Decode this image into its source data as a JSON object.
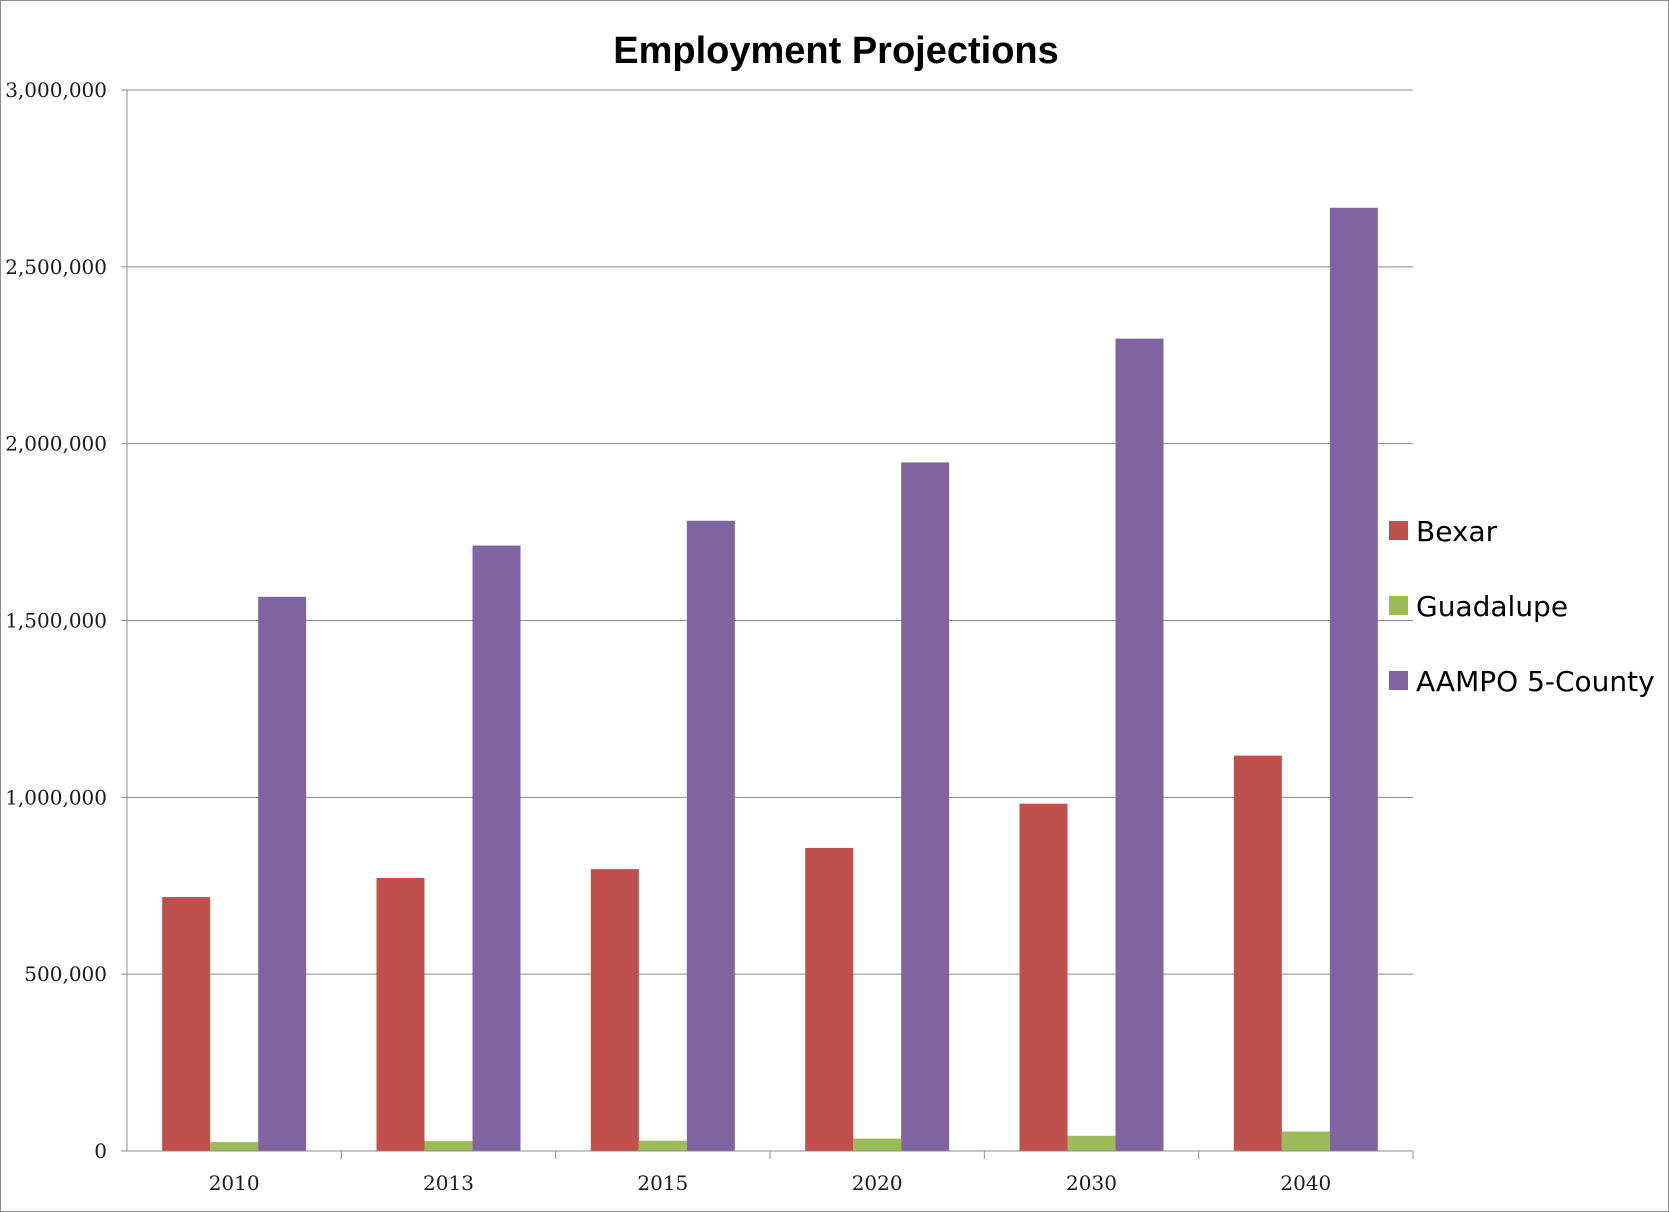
{
  "chart_data": {
    "type": "bar",
    "title": "Employment Projections",
    "xlabel": "",
    "ylabel": "",
    "categories": [
      "2010",
      "2013",
      "2015",
      "2020",
      "2030",
      "2040"
    ],
    "series": [
      {
        "name": "Bexar",
        "color": "#c0504d",
        "values": [
          718000,
          772000,
          797000,
          857000,
          982000,
          1118000
        ]
      },
      {
        "name": "Guadalupe",
        "color": "#9bbb59",
        "values": [
          25000,
          28000,
          29000,
          35000,
          43000,
          55000
        ]
      },
      {
        "name": "AAMPO 5-County",
        "color": "#8064a2",
        "values": [
          1567000,
          1712000,
          1782000,
          1947000,
          2297000,
          2667000
        ]
      }
    ],
    "ylim": [
      0,
      3000000
    ],
    "yticks": [
      0,
      500000,
      1000000,
      1500000,
      2000000,
      2500000,
      3000000
    ],
    "ytick_labels": [
      "0",
      "500,000",
      "1,000,000",
      "1,500,000",
      "2,000,000",
      "2,500,000",
      "3,000,000"
    ],
    "grid": true,
    "legend_position": "right"
  }
}
